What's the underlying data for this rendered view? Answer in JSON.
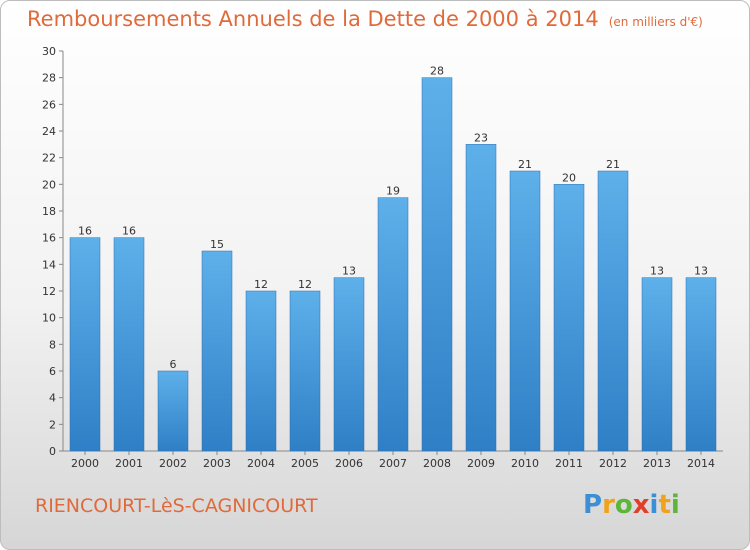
{
  "header": {
    "title": "Remboursements Annuels de la Dette de 2000 à 2014",
    "unit": "(en milliers d'€)"
  },
  "footer": {
    "city": "RIENCOURT-LèS-CAGNICOURT",
    "logo": "Proxiti"
  },
  "colors": {
    "title": "#e06a3a",
    "bar_top": "#5eb0ea",
    "bar_bottom": "#2f7fc6"
  },
  "chart_data": {
    "type": "bar",
    "title": "Remboursements Annuels de la Dette de 2000 à 2014",
    "categories": [
      "2000",
      "2001",
      "2002",
      "2003",
      "2004",
      "2005",
      "2006",
      "2007",
      "2008",
      "2009",
      "2010",
      "2011",
      "2012",
      "2013",
      "2014"
    ],
    "values": [
      16,
      16,
      6,
      15,
      12,
      12,
      13,
      19,
      28,
      23,
      21,
      20,
      21,
      13,
      13
    ],
    "ylim": [
      0,
      30
    ],
    "yticks": [
      0,
      2,
      4,
      6,
      8,
      10,
      12,
      14,
      16,
      18,
      20,
      22,
      24,
      26,
      28,
      30
    ],
    "grid": false,
    "legend": "none"
  }
}
